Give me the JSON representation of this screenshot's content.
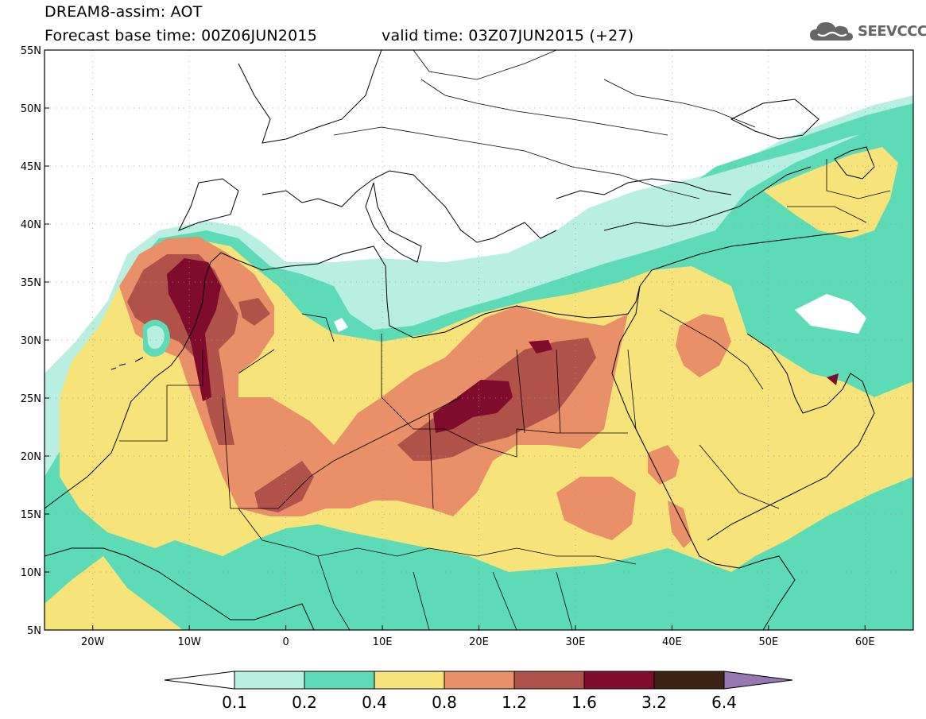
{
  "title": {
    "line1": "DREAM8-assim: AOT",
    "base_time": "Forecast base time: 00Z06JUN2015",
    "valid_time": "valid time: 03Z07JUN2015 (+27)"
  },
  "logo": {
    "text": "SEEVCCC",
    "icon": "cloud-icon"
  },
  "map": {
    "lon_range": [
      -25,
      65
    ],
    "lat_range": [
      5,
      55
    ],
    "lon_ticks": [
      {
        "v": -20,
        "label": "20W"
      },
      {
        "v": -10,
        "label": "10W"
      },
      {
        "v": 0,
        "label": "0"
      },
      {
        "v": 10,
        "label": "10E"
      },
      {
        "v": 20,
        "label": "20E"
      },
      {
        "v": 30,
        "label": "30E"
      },
      {
        "v": 40,
        "label": "40E"
      },
      {
        "v": 50,
        "label": "50E"
      },
      {
        "v": 60,
        "label": "60E"
      }
    ],
    "lat_ticks": [
      {
        "v": 55,
        "label": "55N"
      },
      {
        "v": 50,
        "label": "50N"
      },
      {
        "v": 45,
        "label": "45N"
      },
      {
        "v": 40,
        "label": "40N"
      },
      {
        "v": 35,
        "label": "35N"
      },
      {
        "v": 30,
        "label": "30N"
      },
      {
        "v": 25,
        "label": "25N"
      },
      {
        "v": 20,
        "label": "20N"
      },
      {
        "v": 15,
        "label": "15N"
      },
      {
        "v": 10,
        "label": "10N"
      },
      {
        "v": 5,
        "label": "5N"
      }
    ],
    "gridlines": "dotted"
  },
  "colorbar": {
    "labels": [
      "0.1",
      "0.2",
      "0.4",
      "0.8",
      "1.2",
      "1.6",
      "3.2",
      "6.4"
    ],
    "colors": [
      "#ffffff",
      "#b9efe1",
      "#5ddbb6",
      "#f6e37a",
      "#ea9069",
      "#b1524a",
      "#7f0c2c",
      "#3d2314",
      "#9679b3"
    ]
  }
}
